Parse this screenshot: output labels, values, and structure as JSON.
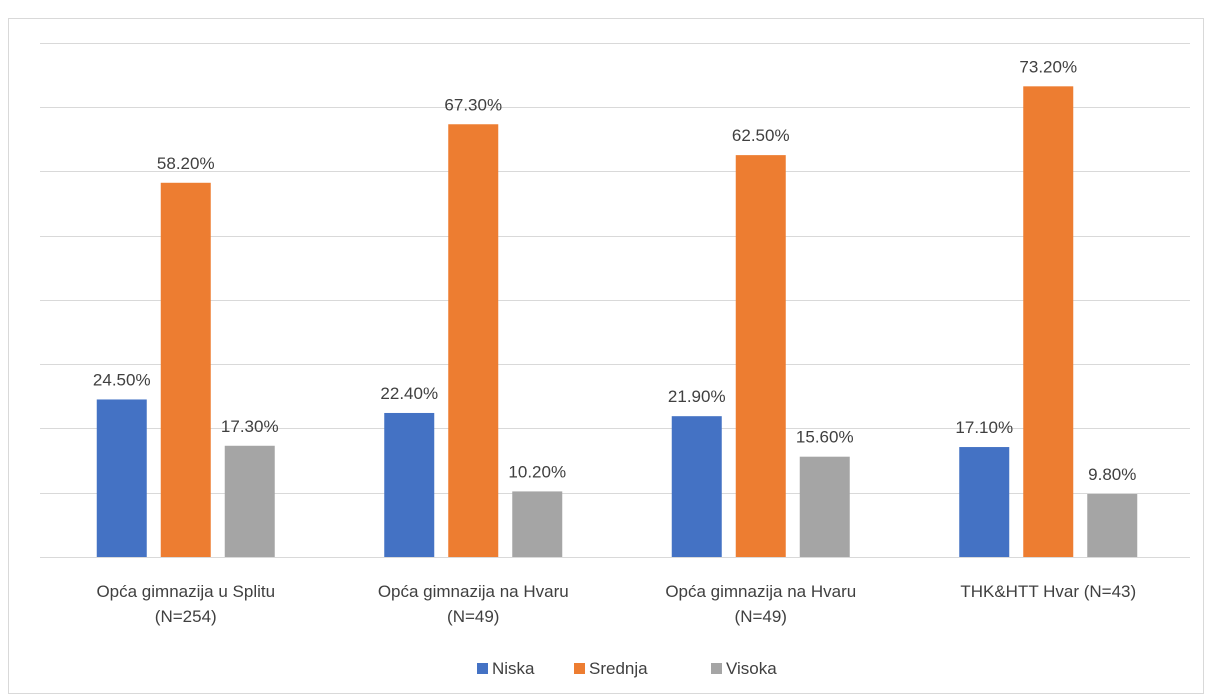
{
  "chart_data": {
    "type": "bar",
    "categories": [
      [
        "Opća gimnazija u Splitu",
        "(N=254)"
      ],
      [
        "Opća gimnazija na Hvaru",
        "(N=49)"
      ],
      [
        "Opća gimnazija na Hvaru",
        "(N=49)"
      ],
      [
        "THK&HTT Hvar (N=43)"
      ]
    ],
    "series": [
      {
        "name": "Niska",
        "color": "#4472c4",
        "values": [
          24.5,
          22.4,
          21.9,
          17.1
        ],
        "labels": [
          "24.50%",
          "22.40%",
          "21.90%",
          "17.10%"
        ]
      },
      {
        "name": "Srednja",
        "color": "#ed7d31",
        "values": [
          58.2,
          67.3,
          62.5,
          73.2
        ],
        "labels": [
          "58.20%",
          "67.30%",
          "62.50%",
          "73.20%"
        ]
      },
      {
        "name": "Visoka",
        "color": "#a5a5a5",
        "values": [
          17.3,
          10.2,
          15.6,
          9.8
        ],
        "labels": [
          "17.30%",
          "10.20%",
          "15.60%",
          "9.80%"
        ]
      }
    ],
    "ylim": [
      0,
      80
    ],
    "grid": true,
    "legend": "bottom"
  }
}
